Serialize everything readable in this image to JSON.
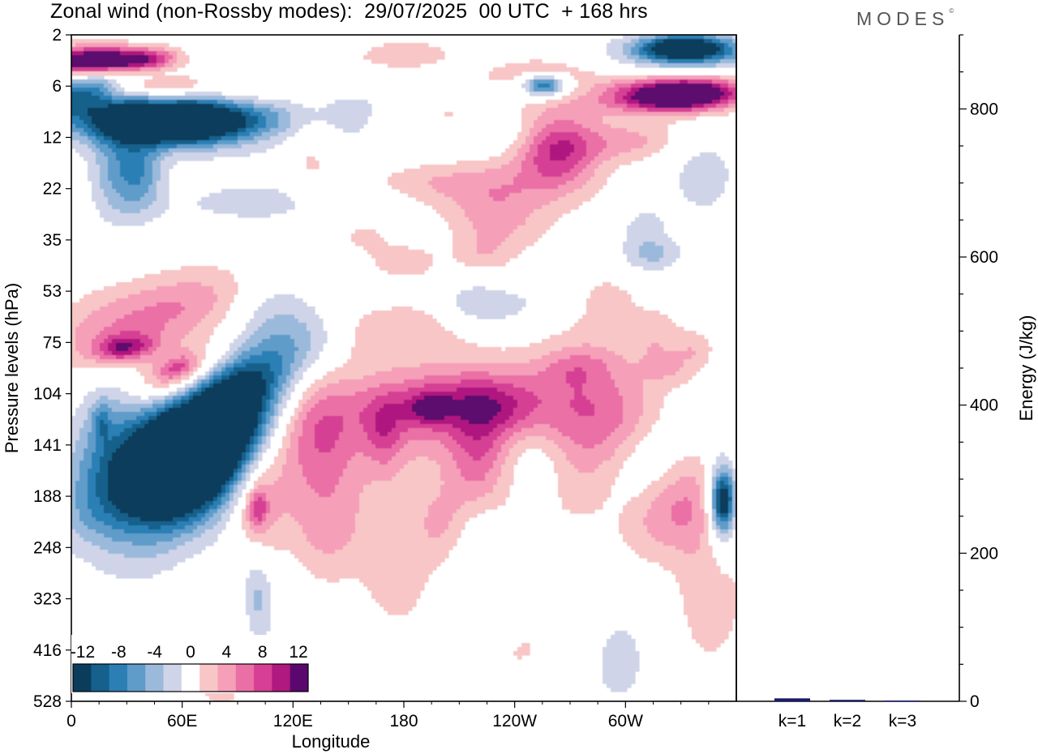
{
  "title": "Zonal wind (non-Rossby modes):  29/07/2025  00 UTC  + 168 hrs",
  "logo": {
    "text": "MODES",
    "mark": "©"
  },
  "chart_data": [
    {
      "id": "hovmoller",
      "type": "heatmap",
      "title": "Zonal wind (non-Rossby modes):  29/07/2025  00 UTC  + 168 hrs",
      "xlabel": "Longitude",
      "ylabel": "Pressure levels (hPa)",
      "x_ticks": [
        "0",
        "60E",
        "120E",
        "180",
        "120W",
        "60W"
      ],
      "x_tick_values": [
        0,
        60,
        120,
        180,
        240,
        300
      ],
      "xlim": [
        0,
        360
      ],
      "y_ticks": [
        "2",
        "6",
        "12",
        "22",
        "35",
        "53",
        "75",
        "104",
        "141",
        "188",
        "248",
        "323",
        "416",
        "528"
      ],
      "colorbar": {
        "labels": [
          "-12",
          "-8",
          "-4",
          "0",
          "4",
          "8",
          "12"
        ],
        "levels": [
          -14,
          -12,
          -10,
          -8,
          -6,
          -4,
          -2,
          2,
          4,
          6,
          8,
          10,
          12,
          14
        ],
        "colors": [
          "#0c3c5c",
          "#15608c",
          "#2b7fb5",
          "#5f9cca",
          "#9bbadb",
          "#cfd4e8",
          "#ffffff",
          "#f8c6c6",
          "#f59fb9",
          "#ea6fa6",
          "#d63f94",
          "#b0197f",
          "#5b086e"
        ]
      },
      "features": [
        {
          "name": "jet-negative-core",
          "lon": 60,
          "level": "141",
          "value": -14
        },
        {
          "name": "positive-core-upper",
          "lon": 58,
          "level": "104",
          "value": 10
        },
        {
          "name": "negative-upper-right",
          "lon": 330,
          "level": "2",
          "value": -12
        },
        {
          "name": "positive-upper-right",
          "lon": 335,
          "level": "6",
          "value": 10
        },
        {
          "name": "positive-core-188",
          "lon": 100,
          "level": "188",
          "value": 8
        }
      ]
    },
    {
      "id": "energy",
      "type": "bar",
      "categories": [
        "k=1",
        "k=2",
        "k=3"
      ],
      "values": [
        4,
        2,
        1
      ],
      "ylabel": "Energy (J/kg)",
      "ylim": [
        0,
        900
      ],
      "y_ticks": [
        "0",
        "200",
        "400",
        "600",
        "800"
      ],
      "y_tick_values": [
        0,
        200,
        400,
        600,
        800
      ],
      "bar_color": "#1a1a6e"
    }
  ]
}
